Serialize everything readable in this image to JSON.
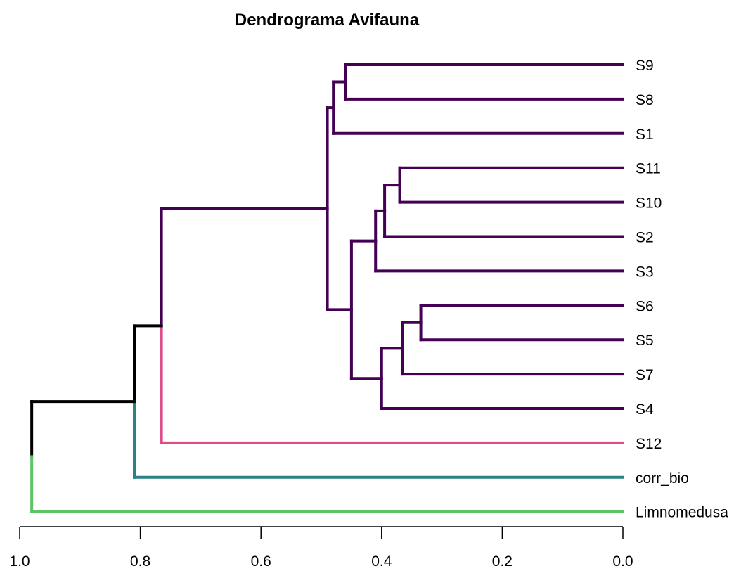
{
  "chart_data": {
    "type": "dendrogram",
    "title": "Dendrograma Avifauna",
    "orientation": "horizontal",
    "xlim": [
      1.0,
      0.0
    ],
    "x_ticks": [
      {
        "value": 1.0,
        "label": "1.0"
      },
      {
        "value": 0.8,
        "label": "0.8"
      },
      {
        "value": 0.6,
        "label": "0.6"
      },
      {
        "value": 0.4,
        "label": "0.4"
      },
      {
        "value": 0.2,
        "label": "0.2"
      },
      {
        "value": 0.0,
        "label": "0.0"
      }
    ],
    "leaves": [
      "S9",
      "S8",
      "S1",
      "S11",
      "S10",
      "S2",
      "S3",
      "S6",
      "S5",
      "S7",
      "S4",
      "S12",
      "corr_bio",
      "Limnomedusa"
    ],
    "colors": {
      "purple": "#440154",
      "pink": "#DE4C8A",
      "teal": "#2A8185",
      "green": "#5DC463",
      "black": "#000000"
    },
    "tree": {
      "height": 0.98,
      "color": "black",
      "children": [
        {
          "height": 0.81,
          "color": "black",
          "children": [
            {
              "height": 0.765,
              "color": "black",
              "children": [
                {
                  "height": 0.49,
                  "color": "purple",
                  "children": [
                    {
                      "height": 0.48,
                      "color": "purple",
                      "children": [
                        {
                          "height": 0.46,
                          "color": "purple",
                          "children": [
                            {
                              "leaf": "S9",
                              "color": "purple"
                            },
                            {
                              "leaf": "S8",
                              "color": "purple"
                            }
                          ]
                        },
                        {
                          "leaf": "S1",
                          "color": "purple"
                        }
                      ]
                    },
                    {
                      "height": 0.45,
                      "color": "purple",
                      "children": [
                        {
                          "height": 0.41,
                          "color": "purple",
                          "children": [
                            {
                              "height": 0.395,
                              "color": "purple",
                              "children": [
                                {
                                  "height": 0.37,
                                  "color": "purple",
                                  "children": [
                                    {
                                      "leaf": "S11",
                                      "color": "purple"
                                    },
                                    {
                                      "leaf": "S10",
                                      "color": "purple"
                                    }
                                  ]
                                },
                                {
                                  "leaf": "S2",
                                  "color": "purple"
                                }
                              ]
                            },
                            {
                              "leaf": "S3",
                              "color": "purple"
                            }
                          ]
                        },
                        {
                          "height": 0.4,
                          "color": "purple",
                          "children": [
                            {
                              "height": 0.365,
                              "color": "purple",
                              "children": [
                                {
                                  "height": 0.335,
                                  "color": "purple",
                                  "children": [
                                    {
                                      "leaf": "S6",
                                      "color": "purple"
                                    },
                                    {
                                      "leaf": "S5",
                                      "color": "purple"
                                    }
                                  ]
                                },
                                {
                                  "leaf": "S7",
                                  "color": "purple"
                                }
                              ]
                            },
                            {
                              "leaf": "S4",
                              "color": "purple"
                            }
                          ]
                        }
                      ]
                    }
                  ]
                },
                {
                  "leaf": "S12",
                  "color": "pink"
                }
              ]
            },
            {
              "leaf": "corr_bio",
              "color": "teal"
            }
          ]
        },
        {
          "leaf": "Limnomedusa",
          "color": "green"
        }
      ]
    }
  }
}
